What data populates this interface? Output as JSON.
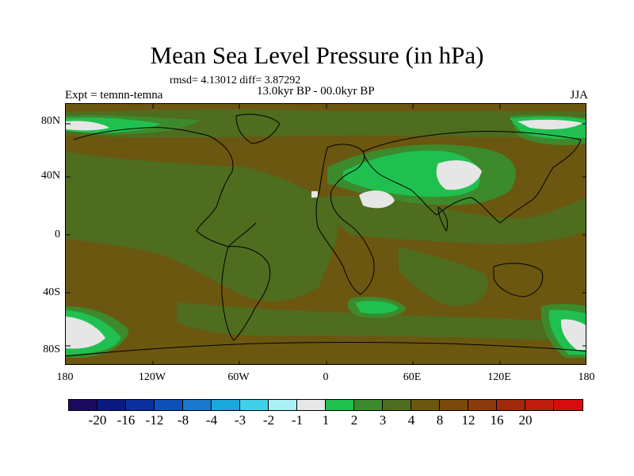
{
  "title": "Mean Sea Level Pressure (in hPa)",
  "stats_text": "rmsd= 4.13012 diff= 3.87292",
  "period_text": "13.0kyr BP - 00.0kyr BP",
  "experiment_text": "Expt = temnn-temna",
  "season_text": "JJA",
  "y_ticks": [
    "80N",
    "40N",
    "0",
    "40S",
    "80S"
  ],
  "x_ticks": [
    "180",
    "120W",
    "60W",
    "0",
    "60E",
    "120E",
    "180"
  ],
  "colorbar": {
    "colors": [
      "#1c0a60",
      "#0a1a80",
      "#0c2fa0",
      "#0f50b8",
      "#1a78cc",
      "#1aa8dc",
      "#40d0e8",
      "#a8f0f4",
      "#e6e6e6",
      "#20c050",
      "#3c8a2c",
      "#4e6d1e",
      "#6b5710",
      "#7a4a0a",
      "#8a3a0c",
      "#a02a0a",
      "#c01c0c",
      "#d80c0c"
    ],
    "labels": [
      "-20",
      "-16",
      "-12",
      "-8",
      "-4",
      "-3",
      "-2",
      "-1",
      "1",
      "2",
      "3",
      "4",
      "8",
      "12",
      "16",
      "20"
    ]
  },
  "map_colors": {
    "background": "#6b5710",
    "level_4": "#4e6d1e",
    "level_3": "#3c8a2c",
    "level_2": "#20c050",
    "level_1": "#e6e6e6",
    "cyan": "#40d0e8"
  }
}
